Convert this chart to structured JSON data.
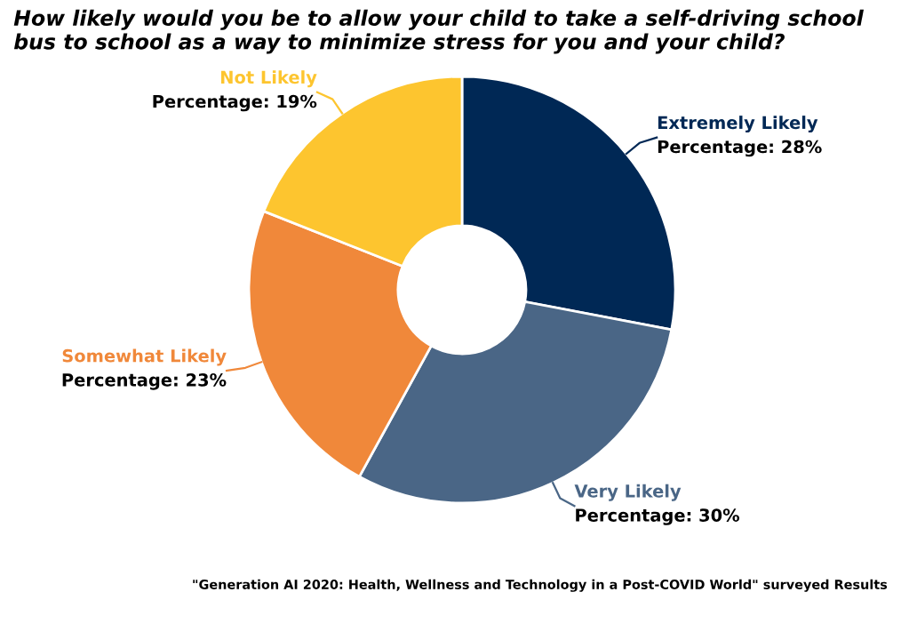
{
  "chart_data": {
    "type": "donut",
    "title": "How likely would you be to allow your child to take a self-driving school bus to school as a way to minimize stress for you and your child?",
    "categories": [
      "Extremely Likely",
      "Very Likely",
      "Somewhat Likely",
      "Not Likely"
    ],
    "values": [
      28,
      30,
      23,
      19
    ],
    "colors": [
      "#002855",
      "#4a6686",
      "#f0883a",
      "#fdc52f"
    ],
    "value_labels": [
      "Percentage: 28%",
      "Percentage: 30%",
      "Percentage: 23%",
      "Percentage: 19%"
    ],
    "annotations": [
      "\"Generation AI 2020: Health, Wellness and Technology in a Post-COVID World\" surveyed Results"
    ],
    "legend": false
  }
}
